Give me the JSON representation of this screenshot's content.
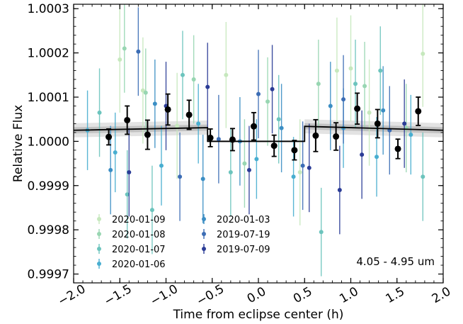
{
  "chart_data": {
    "type": "scatter",
    "xlabel": "Time from eclipse center (h)",
    "ylabel": "Relative Flux",
    "xlim": [
      -2.0,
      2.0
    ],
    "ylim": [
      0.99968,
      1.00031
    ],
    "x_ticks": [
      -2.0,
      -1.5,
      -1.0,
      -0.5,
      0.0,
      0.5,
      1.0,
      1.5,
      2.0
    ],
    "x_tick_labels": [
      "−2.0",
      "−1.5",
      "−1.0",
      "−0.5",
      "0.0",
      "0.5",
      "1.0",
      "1.5",
      "2.0"
    ],
    "y_ticks": [
      0.9997,
      0.9998,
      0.9999,
      1.0,
      1.0001,
      1.0002,
      1.0003
    ],
    "y_tick_labels": [
      "0.9997",
      "0.9998",
      "0.9999",
      "1.0000",
      "1.0001",
      "1.0002",
      "1.0003"
    ],
    "annotation": "4.05 - 4.95 um",
    "legend_position": "lower-left",
    "colors": {
      "binned": "#000000",
      "model": "#000000",
      "band_outer": "#e3e3e3",
      "band_inner": "#c2c2c2"
    },
    "model": {
      "eclipse_start": -0.55,
      "eclipse_end": 0.5,
      "in_eclipse_level": 1.0,
      "pre": {
        "x": [
          -2.0,
          -0.55
        ],
        "y": [
          1.000025,
          1.000031
        ]
      },
      "post": {
        "x": [
          0.5,
          2.0
        ],
        "y": [
          1.000034,
          1.000025
        ]
      },
      "band_inner": 7e-06,
      "band_outer": 1.6e-05
    },
    "binned": {
      "x": [
        -1.62,
        -1.42,
        -1.2,
        -0.98,
        -0.75,
        -0.52,
        -0.28,
        -0.05,
        0.17,
        0.39,
        0.62,
        0.84,
        1.07,
        1.29,
        1.51,
        1.73
      ],
      "y": [
        1.00001,
        1.000048,
        1.000015,
        1.000072,
        1.00006,
        1.000008,
        1.000004,
        1.000034,
        0.99999,
        0.99998,
        1.000013,
        1.000011,
        1.000074,
        1.00004,
        0.999983,
        1.000068
      ],
      "err": [
        1.8e-05,
        3.2e-05,
        3.3e-05,
        3.5e-05,
        3.3e-05,
        2e-05,
        2.5e-05,
        3.1e-05,
        2.4e-05,
        2.2e-05,
        3.6e-05,
        3.1e-05,
        3.5e-05,
        3.2e-05,
        2.2e-05,
        3.2e-05
      ]
    },
    "series": [
      {
        "name": "2020-01-09",
        "color": "#c6e8bd",
        "x": [
          -1.5,
          -1.25,
          -0.88,
          -0.35,
          0.45,
          0.85,
          1.0,
          1.2,
          1.78
        ],
        "y": [
          1.000185,
          1.000115,
          1.000035,
          1.00015,
          0.99993,
          1.00016,
          1.000165,
          1.000065,
          1.000198
        ],
        "err": [
          0.00012,
          0.00012,
          0.00012,
          0.00012,
          0.00012,
          0.00012,
          0.00012,
          0.00012,
          0.00012
        ]
      },
      {
        "name": "2020-01-08",
        "color": "#98d6b2",
        "x": [
          -1.45,
          -1.22,
          -0.7,
          -0.15,
          0.1,
          0.65,
          1.15,
          1.6
        ],
        "y": [
          1.00021,
          1.00011,
          1.00014,
          0.99995,
          1.00009,
          1.00013,
          1.000125,
          1.00003
        ],
        "err": [
          0.0001,
          0.0001,
          0.0001,
          0.0001,
          0.0001,
          0.0001,
          0.0001,
          0.0001
        ]
      },
      {
        "name": "2020-01-07",
        "color": "#6cc4bd",
        "x": [
          -1.72,
          -1.42,
          -1.15,
          -0.82,
          -0.3,
          0.22,
          0.68,
          1.05,
          1.32,
          1.78
        ],
        "y": [
          1.000065,
          0.99988,
          0.999845,
          1.00015,
          0.99993,
          1.00005,
          0.999795,
          1.00013,
          1.00016,
          0.99992
        ],
        "err": [
          0.0001,
          0.0001,
          0.0001,
          0.0001,
          0.0001,
          0.0001,
          0.0001,
          0.0001,
          0.0001,
          0.0001
        ]
      },
      {
        "name": "2020-01-06",
        "color": "#48aed0",
        "x": [
          -1.85,
          -1.55,
          -1.05,
          -0.65,
          -0.02,
          0.38,
          0.92,
          1.28,
          1.65
        ],
        "y": [
          1.000025,
          0.999975,
          0.999945,
          1.00004,
          0.99996,
          0.99992,
          1.00003,
          0.999965,
          1.000015
        ],
        "err": [
          9e-05,
          9e-05,
          9e-05,
          9e-05,
          9e-05,
          9e-05,
          9e-05,
          9e-05,
          9e-05
        ]
      },
      {
        "name": "2020-01-03",
        "color": "#3b8ec4",
        "x": [
          -1.6,
          -1.12,
          -0.6,
          -0.2,
          0.25,
          0.78,
          1.35
        ],
        "y": [
          0.999935,
          1.000085,
          0.999915,
          1.0,
          1.00003,
          1.00008,
          1.00007
        ],
        "err": [
          0.0001,
          0.0001,
          0.0001,
          0.0001,
          0.0001,
          0.0001,
          0.0001
        ]
      },
      {
        "name": "2019-07-19",
        "color": "#3c6db5",
        "x": [
          -1.3,
          -0.85,
          -0.43,
          0.0,
          0.48,
          0.92,
          1.42
        ],
        "y": [
          1.000203,
          0.99992,
          1.000005,
          1.000107,
          0.999945,
          1.000095,
          1.000025
        ],
        "err": [
          0.0001,
          0.0001,
          0.0001,
          0.0001,
          0.0001,
          0.0001,
          0.0001
        ]
      },
      {
        "name": "2019-07-09",
        "color": "#2b3c96",
        "x": [
          -1.4,
          -1.0,
          -0.55,
          -0.1,
          0.15,
          0.55,
          0.88,
          1.12,
          1.58
        ],
        "y": [
          0.99993,
          1.00008,
          1.000123,
          0.999935,
          1.000118,
          0.99994,
          0.99989,
          0.99997,
          1.00004
        ],
        "err": [
          0.0001,
          0.0001,
          0.0001,
          0.0001,
          0.0001,
          0.0001,
          0.0001,
          0.0001,
          0.0001
        ]
      }
    ]
  }
}
